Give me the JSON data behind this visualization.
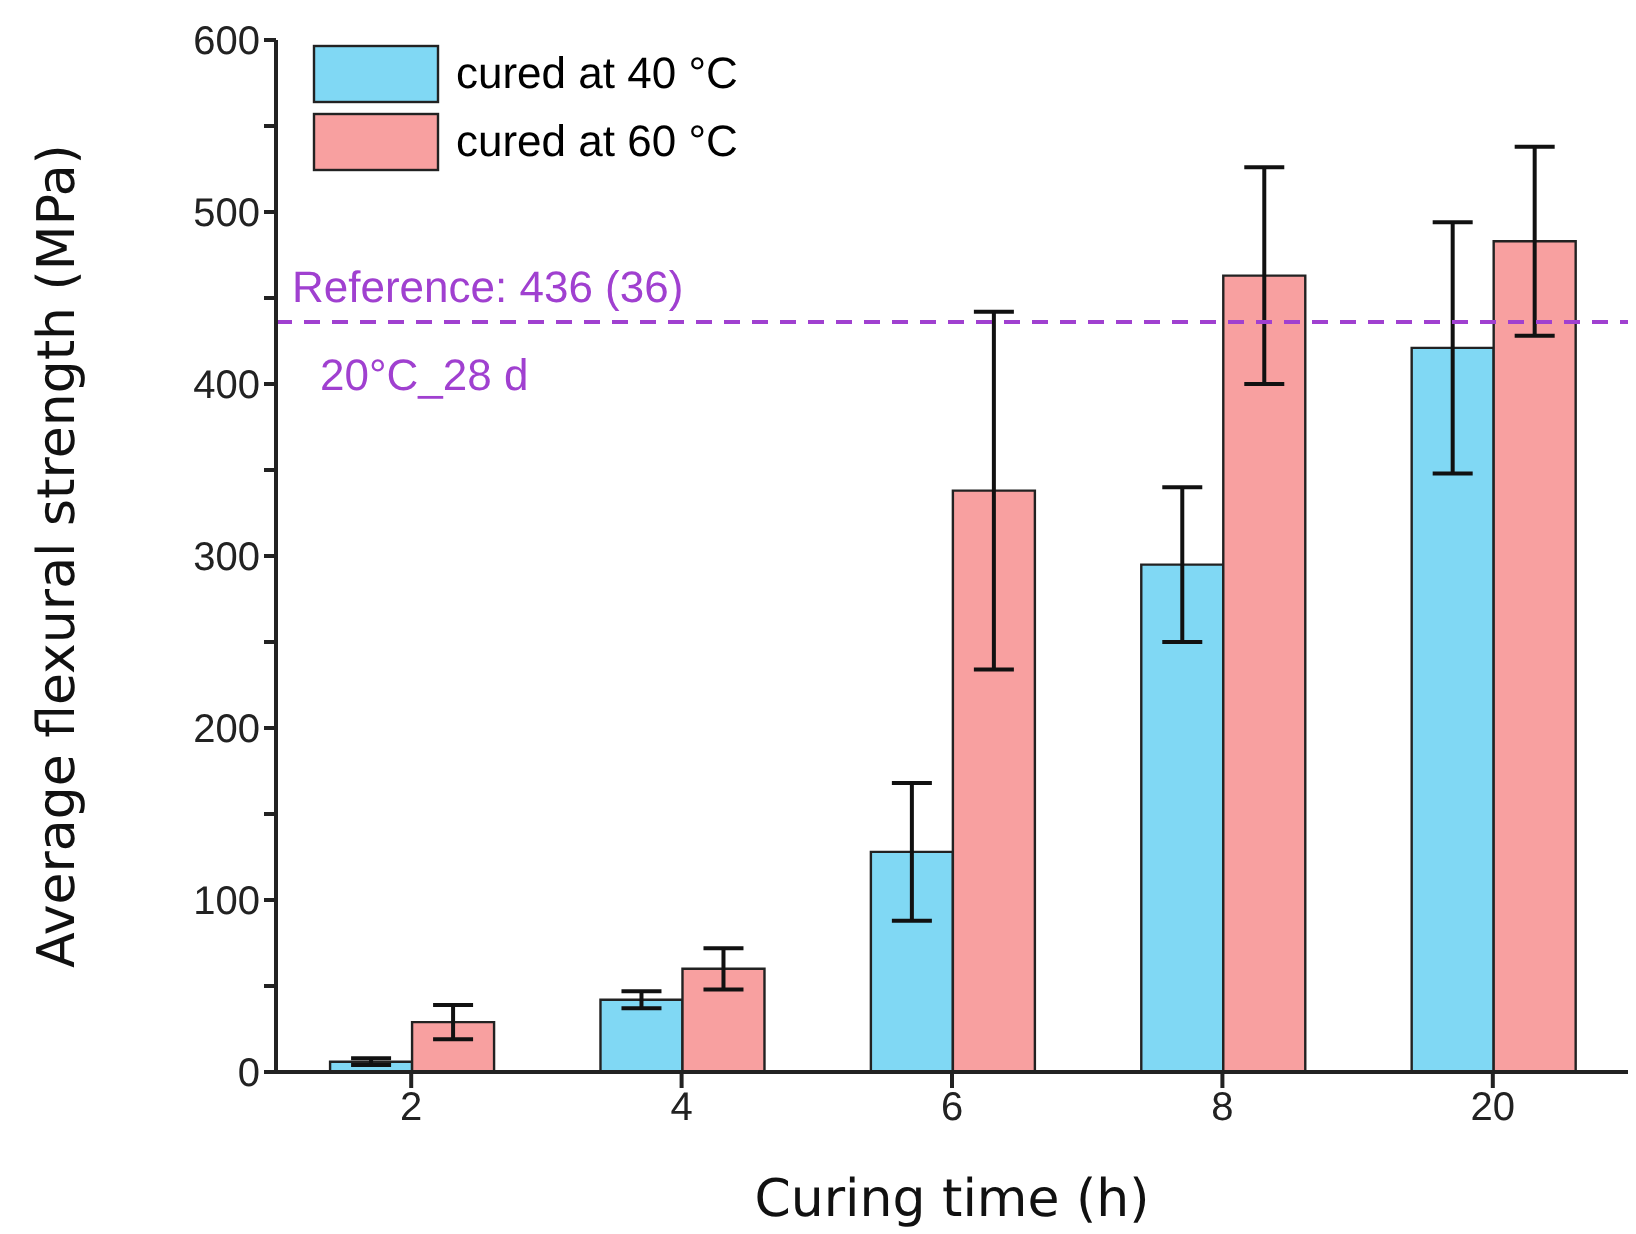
{
  "chart_data": {
    "type": "bar",
    "xlabel": "Curing time (h)",
    "ylabel": "Average flexural strength (MPa)",
    "categories": [
      "2",
      "4",
      "6",
      "8",
      "20"
    ],
    "series": [
      {
        "name": "cured at 40 °C",
        "color": "#80d8f4",
        "values": [
          6,
          42,
          128,
          295,
          421
        ],
        "errors": [
          2,
          5,
          40,
          45,
          73
        ]
      },
      {
        "name": "cured at 60 °C",
        "color": "#f8a0a0",
        "values": [
          29,
          60,
          338,
          463,
          483
        ],
        "errors": [
          10,
          12,
          104,
          63,
          55
        ]
      }
    ],
    "ylim": [
      0,
      600
    ],
    "yticks": [
      0,
      {
        "value": 50,
        "label": null
      },
      100,
      {
        "value": 150,
        "label": null
      },
      200,
      {
        "value": 250,
        "label": null
      },
      300,
      {
        "value": 350,
        "label": null
      },
      400,
      {
        "value": 450,
        "label": null
      },
      500,
      {
        "value": 550,
        "label": null
      },
      600
    ],
    "ref_lines": [
      {
        "axis": "y",
        "value": 436,
        "label": "Reference: 436 (36)",
        "color": "#a040d0",
        "line_style": "dashed"
      }
    ],
    "annotations": [
      "20°C_28 d"
    ],
    "legend": "top left",
    "grid": false
  }
}
